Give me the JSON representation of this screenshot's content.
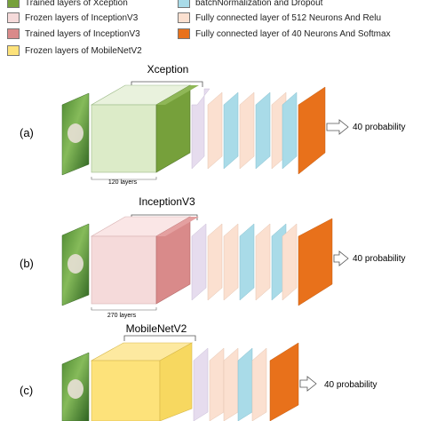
{
  "legend": [
    {
      "label": "Trained layers of Xception",
      "color": "#76a03b"
    },
    {
      "label": "Frozen layers of InceptionV3",
      "color": "#f5dada"
    },
    {
      "label": "Trained layers of InceptionV3",
      "color": "#d98a8a"
    },
    {
      "label": "Frozen layers of MobileNetV2",
      "color": "#fde27a"
    },
    {
      "label": "batchNormalization and Dropout",
      "color": "#a9dbe8"
    },
    {
      "label": "Fully connected layer of 512 Neurons And Relu",
      "color": "#fbe0d0"
    },
    {
      "label": "Fully connected layer of 40 Neurons And Softmax",
      "color": "#e8711b"
    }
  ],
  "rows": [
    {
      "id": "(a)",
      "model": "Xception",
      "layers_label": "120 layers",
      "output": "40 probability",
      "frozen_color": "#dcebc8",
      "trained_color": "#76a03b"
    },
    {
      "id": "(b)",
      "model": "InceptionV3",
      "layers_label": "270 layers",
      "output": "40 probability",
      "frozen_color": "#f5dada",
      "trained_color": "#d98a8a"
    },
    {
      "id": "(c)",
      "model": "MobileNetV2",
      "layers_label": "",
      "output": "40 probability",
      "frozen_color": "#fde27a",
      "trained_color": "#fde27a"
    }
  ],
  "colors": {
    "bn": "#a9dbe8",
    "fc512": "#fbe0d0",
    "fc40": "#e8711b",
    "lavender": "#e6dcee"
  }
}
